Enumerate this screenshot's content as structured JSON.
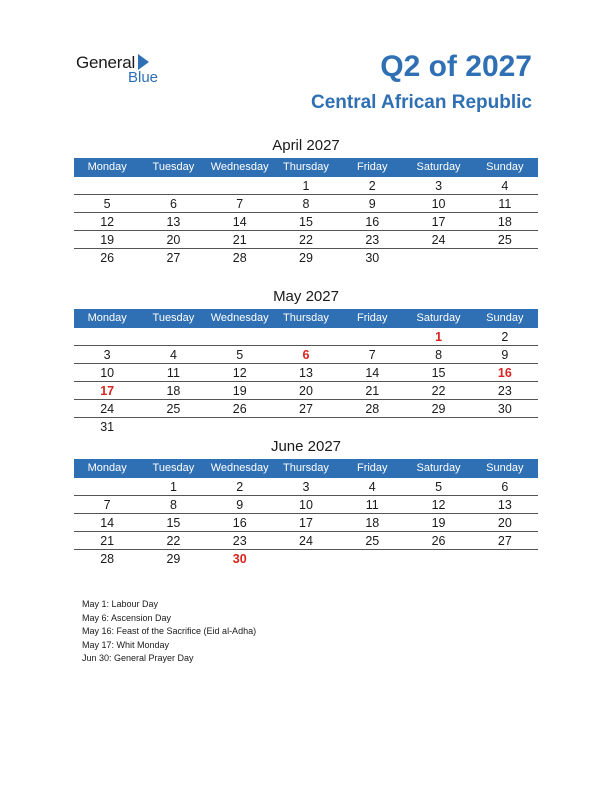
{
  "logo": {
    "general": "General",
    "blue": "Blue"
  },
  "title": "Q2 of 2027",
  "country": "Central African Republic",
  "weekdays": [
    "Monday",
    "Tuesday",
    "Wednesday",
    "Thursday",
    "Friday",
    "Saturday",
    "Sunday"
  ],
  "months": [
    {
      "name": "April 2027",
      "weeks": [
        [
          "",
          "",
          "",
          "1",
          "2",
          "3",
          "4"
        ],
        [
          "5",
          "6",
          "7",
          "8",
          "9",
          "10",
          "11"
        ],
        [
          "12",
          "13",
          "14",
          "15",
          "16",
          "17",
          "18"
        ],
        [
          "19",
          "20",
          "21",
          "22",
          "23",
          "24",
          "25"
        ],
        [
          "26",
          "27",
          "28",
          "29",
          "30",
          "",
          ""
        ]
      ],
      "holidays": []
    },
    {
      "name": "May 2027",
      "weeks": [
        [
          "",
          "",
          "",
          "",
          "",
          "1",
          "2"
        ],
        [
          "3",
          "4",
          "5",
          "6",
          "7",
          "8",
          "9"
        ],
        [
          "10",
          "11",
          "12",
          "13",
          "14",
          "15",
          "16"
        ],
        [
          "17",
          "18",
          "19",
          "20",
          "21",
          "22",
          "23"
        ],
        [
          "24",
          "25",
          "26",
          "27",
          "28",
          "29",
          "30"
        ],
        [
          "31",
          "",
          "",
          "",
          "",
          "",
          ""
        ]
      ],
      "holidays": [
        "1",
        "6",
        "16",
        "17"
      ]
    },
    {
      "name": "June 2027",
      "weeks": [
        [
          "",
          "1",
          "2",
          "3",
          "4",
          "5",
          "6"
        ],
        [
          "7",
          "8",
          "9",
          "10",
          "11",
          "12",
          "13"
        ],
        [
          "14",
          "15",
          "16",
          "17",
          "18",
          "19",
          "20"
        ],
        [
          "21",
          "22",
          "23",
          "24",
          "25",
          "26",
          "27"
        ],
        [
          "28",
          "29",
          "30",
          "",
          "",
          "",
          ""
        ]
      ],
      "holidays": [
        "30"
      ]
    }
  ],
  "notes": [
    "May 1: Labour Day",
    "May 6: Ascension Day",
    "May 16: Feast of the Sacrifice (Eid al-Adha)",
    "May 17: Whit Monday",
    "Jun 30: General Prayer Day"
  ],
  "colors": {
    "accent": "#2f6fb3",
    "holiday": "#d9231f"
  }
}
